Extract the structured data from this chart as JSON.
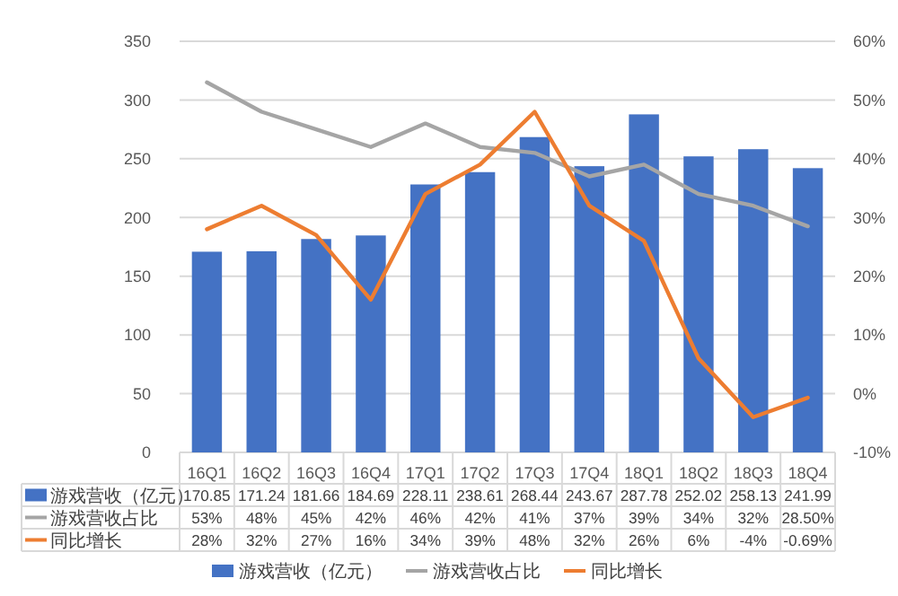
{
  "chart_data": {
    "type": "bar",
    "categories": [
      "16Q1",
      "16Q2",
      "16Q3",
      "16Q4",
      "17Q1",
      "17Q2",
      "17Q3",
      "17Q4",
      "18Q1",
      "18Q2",
      "18Q3",
      "18Q4"
    ],
    "series": [
      {
        "name": "游戏营收（亿元）",
        "color": "#4472c4",
        "values": [
          170.85,
          171.24,
          181.66,
          184.69,
          228.11,
          238.61,
          268.44,
          243.67,
          287.78,
          252.02,
          258.13,
          241.99
        ],
        "value_labels": [
          "170.85",
          "171.24",
          "181.66",
          "184.69",
          "228.11",
          "238.61",
          "268.44",
          "243.67",
          "287.78",
          "252.02",
          "258.13",
          "241.99"
        ]
      },
      {
        "name": "游戏营收占比",
        "type": "line",
        "axis": "y2",
        "color": "#a5a5a5",
        "values": [
          53,
          48,
          45,
          42,
          46,
          42,
          41,
          37,
          39,
          34,
          32,
          28.5
        ],
        "value_labels": [
          "53%",
          "48%",
          "45%",
          "42%",
          "46%",
          "42%",
          "41%",
          "37%",
          "39%",
          "34%",
          "32%",
          "28.50%"
        ]
      },
      {
        "name": "同比增长",
        "type": "line",
        "axis": "y2",
        "color": "#ed7d31",
        "values": [
          28,
          32,
          27,
          16,
          34,
          39,
          48,
          32,
          26,
          6,
          -4,
          -0.69
        ],
        "value_labels": [
          "28%",
          "32%",
          "27%",
          "16%",
          "34%",
          "39%",
          "48%",
          "32%",
          "26%",
          "6%",
          "-4%",
          "-0.69%"
        ]
      }
    ],
    "ylim": [
      0,
      350
    ],
    "yticks": [
      0,
      50,
      100,
      150,
      200,
      250,
      300,
      350
    ],
    "y2lim": [
      -10,
      60
    ],
    "y2ticks": [
      {
        "value": -10,
        "label": "-10%"
      },
      {
        "value": 0,
        "label": "0%"
      },
      {
        "value": 10,
        "label": "10%"
      },
      {
        "value": 20,
        "label": "20%"
      },
      {
        "value": 30,
        "label": "30%"
      },
      {
        "value": 40,
        "label": "40%"
      },
      {
        "value": 50,
        "label": "50%"
      },
      {
        "value": 60,
        "label": "60%"
      }
    ],
    "grid": "y",
    "legend": "bottom",
    "marker": "none",
    "line_style": "solid"
  }
}
